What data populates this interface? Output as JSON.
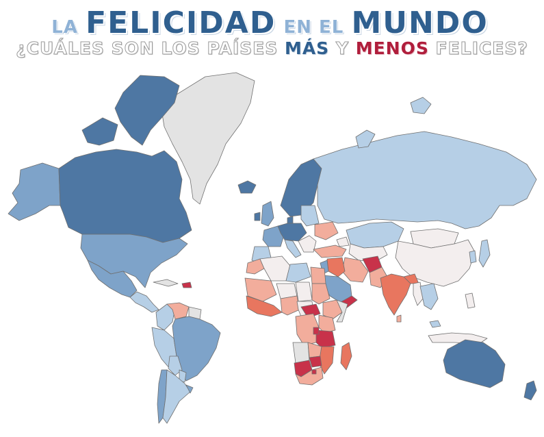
{
  "title": {
    "word1": "LA",
    "word2": "FELICIDAD",
    "word3": "EN EL",
    "word4": "MUNDO"
  },
  "subtitle": {
    "part1": "¿CUÁLES SON LOS PAÍSES ",
    "most": "MÁS",
    "middle": " Y ",
    "least": "MENOS",
    "part2": " FELICES?"
  },
  "colors": {
    "very_happy": "#4e77a3",
    "happy": "#7ea3c9",
    "somewhat_happy": "#b6cfe6",
    "neutral": "#f3eeee",
    "somewhat_unhappy": "#f2ad9c",
    "unhappy": "#e8765f",
    "very_unhappy": "#c8324a",
    "no_data": "#e3e3e3",
    "title_dark": "#2f5f8f",
    "title_light": "#8fb2d6",
    "accent_red": "#b01e3c"
  }
}
